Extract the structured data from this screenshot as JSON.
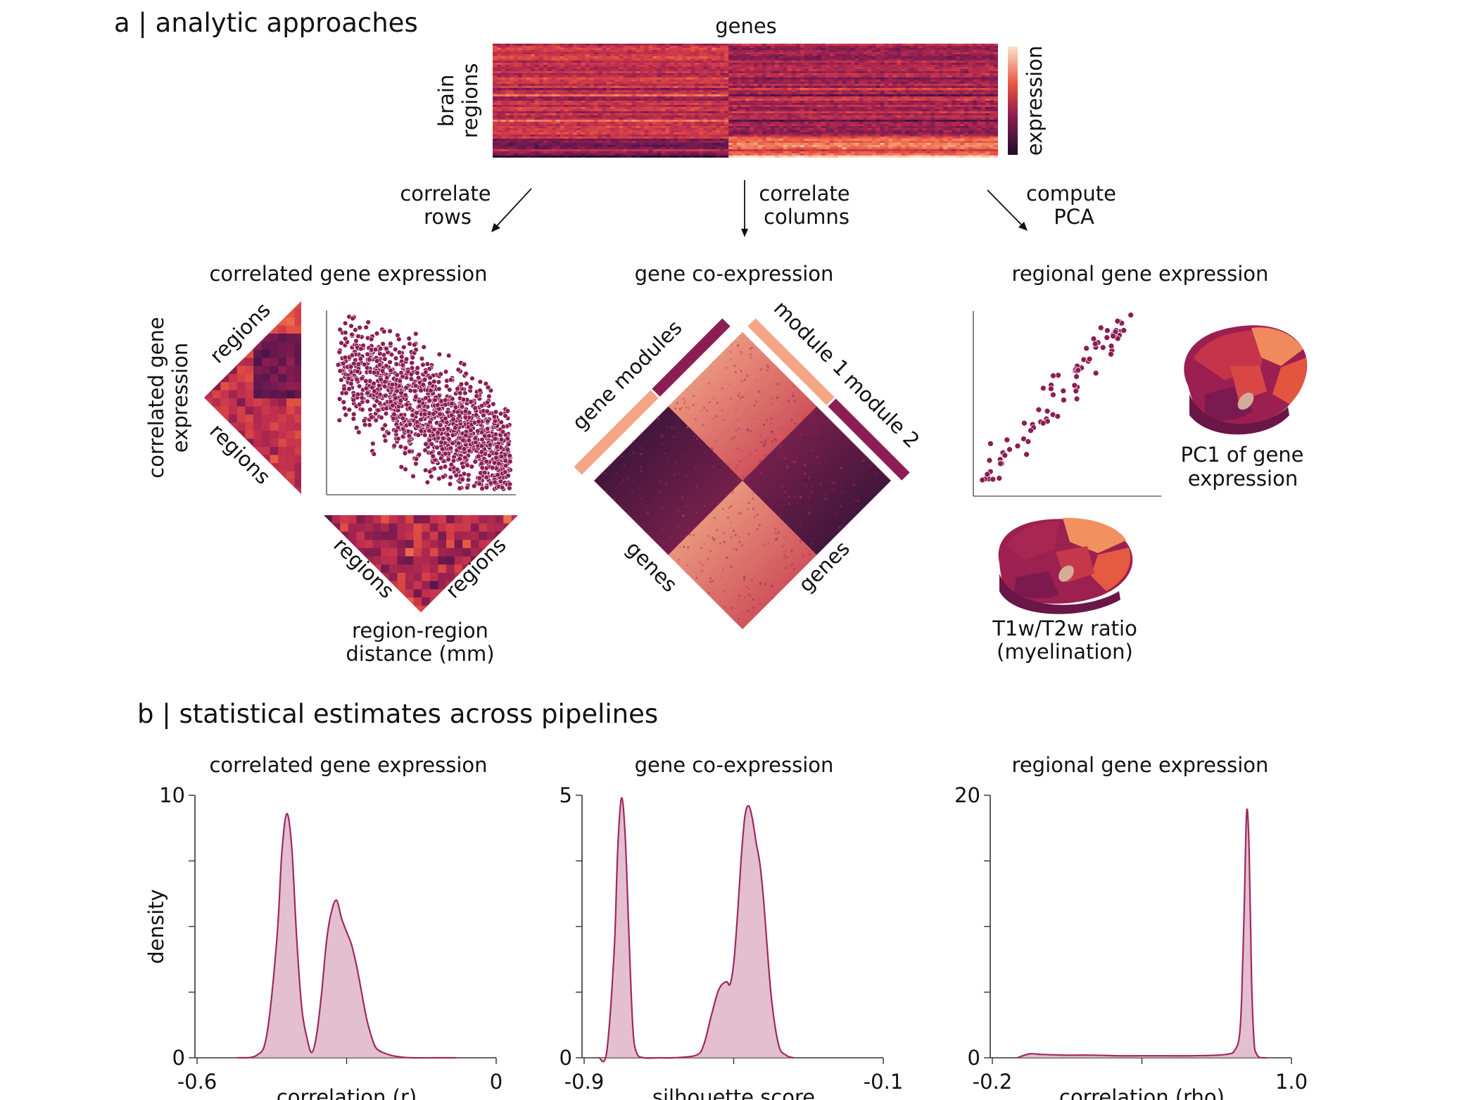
{
  "panel_a": {
    "title": "a | analytic approaches",
    "matrix": {
      "col_label": "genes",
      "row_label_1": "brain",
      "row_label_2": "regions",
      "colorbar_label": "expression"
    },
    "arrows": {
      "rows": [
        "correlate",
        "rows"
      ],
      "columns": [
        "correlate",
        "columns"
      ],
      "pca": [
        "compute",
        "PCA"
      ]
    },
    "cge": {
      "title": "correlated gene expression",
      "ylabel_1": "correlated gene",
      "ylabel_2": "expression",
      "regions_label": "regions",
      "distance_label_1": "region-region",
      "distance_label_2": "distance (mm)"
    },
    "coexp": {
      "title": "gene co-expression",
      "gene_modules": "gene modules",
      "module1": "module 1",
      "module2": "module 2",
      "genes_label": "genes"
    },
    "rge": {
      "title": "regional gene expression",
      "pc1_label_1": "PC1 of gene",
      "pc1_label_2": "expression",
      "t1t2_label_1": "T1w/T2w ratio",
      "t1t2_label_2": "(myelination)"
    },
    "colors": {
      "dark": "#1e0e2b",
      "mid": "#8a1d4f",
      "hot": "#e8543e",
      "light": "#f7c3a1",
      "scatter": "#8b1d54"
    }
  },
  "panel_b": {
    "title": "b | statistical estimates across pipelines"
  },
  "chart_data": [
    {
      "type": "area",
      "title": "correlated gene expression",
      "xlabel": "correlation (r)",
      "ylabel": "density",
      "xlim": [
        -0.6,
        0
      ],
      "ylim": [
        0,
        10
      ],
      "xtick_labels": [
        "-0.6",
        "0"
      ],
      "ytick_labels": [
        "0",
        "10"
      ],
      "series": [
        {
          "x": [
            -0.52,
            -0.48,
            -0.46,
            -0.44,
            -0.43,
            -0.42,
            -0.41,
            -0.4,
            -0.39,
            -0.38,
            -0.37,
            -0.36,
            -0.35,
            -0.34,
            -0.33,
            -0.32,
            -0.31,
            -0.3,
            -0.29,
            -0.28,
            -0.27,
            -0.26,
            -0.25,
            -0.24,
            -0.22,
            -0.2,
            -0.17,
            -0.12,
            -0.08
          ],
          "y": [
            0.0,
            0.1,
            0.9,
            4.5,
            7.8,
            9.3,
            8.0,
            4.5,
            1.9,
            0.8,
            0.2,
            0.9,
            2.5,
            4.5,
            5.6,
            6.0,
            5.3,
            4.8,
            4.3,
            3.5,
            2.5,
            1.5,
            0.8,
            0.35,
            0.15,
            0.05,
            0.0,
            0.0,
            0.0
          ]
        }
      ]
    },
    {
      "type": "area",
      "title": "gene co-expression",
      "xlabel": "silhouette score",
      "ylabel": "",
      "xlim": [
        -0.9,
        -0.1
      ],
      "ylim": [
        0,
        5
      ],
      "xtick_labels": [
        "-0.9",
        "-0.1"
      ],
      "ytick_labels": [
        "0",
        "5"
      ],
      "series": [
        {
          "x": [
            -0.86,
            -0.84,
            -0.82,
            -0.81,
            -0.8,
            -0.79,
            -0.78,
            -0.77,
            -0.76,
            -0.74,
            -0.7,
            -0.66,
            -0.6,
            -0.58,
            -0.56,
            -0.54,
            -0.52,
            -0.51,
            -0.5,
            -0.49,
            -0.48,
            -0.47,
            -0.46,
            -0.45,
            -0.44,
            -0.43,
            -0.42,
            -0.4,
            -0.38,
            -0.36,
            -0.34
          ],
          "y": [
            0.0,
            0.1,
            2.0,
            4.0,
            4.95,
            4.2,
            2.3,
            0.6,
            0.1,
            0.0,
            0.0,
            0.0,
            0.05,
            0.25,
            0.8,
            1.3,
            1.45,
            1.4,
            1.8,
            2.7,
            3.8,
            4.6,
            4.8,
            4.55,
            4.1,
            3.7,
            3.0,
            1.2,
            0.25,
            0.05,
            0.0
          ]
        }
      ]
    },
    {
      "type": "area",
      "title": "regional gene expression",
      "xlabel": "correlation (rho)",
      "ylabel": "",
      "xlim": [
        -0.2,
        1.0
      ],
      "ylim": [
        0,
        20
      ],
      "xtick_labels": [
        "-0.2",
        "1.0"
      ],
      "ytick_labels": [
        "0",
        "20"
      ],
      "series": [
        {
          "x": [
            -0.1,
            -0.05,
            0.0,
            0.1,
            0.2,
            0.3,
            0.4,
            0.5,
            0.6,
            0.7,
            0.75,
            0.77,
            0.79,
            0.8,
            0.81,
            0.82,
            0.83,
            0.84,
            0.85,
            0.86,
            0.87,
            0.88,
            0.9
          ],
          "y": [
            0.0,
            0.3,
            0.25,
            0.2,
            0.2,
            0.15,
            0.15,
            0.15,
            0.15,
            0.2,
            0.3,
            0.5,
            1.5,
            4.5,
            11.0,
            18.7,
            16.0,
            6.0,
            1.2,
            0.3,
            0.05,
            0.0,
            0.0
          ]
        }
      ]
    }
  ]
}
